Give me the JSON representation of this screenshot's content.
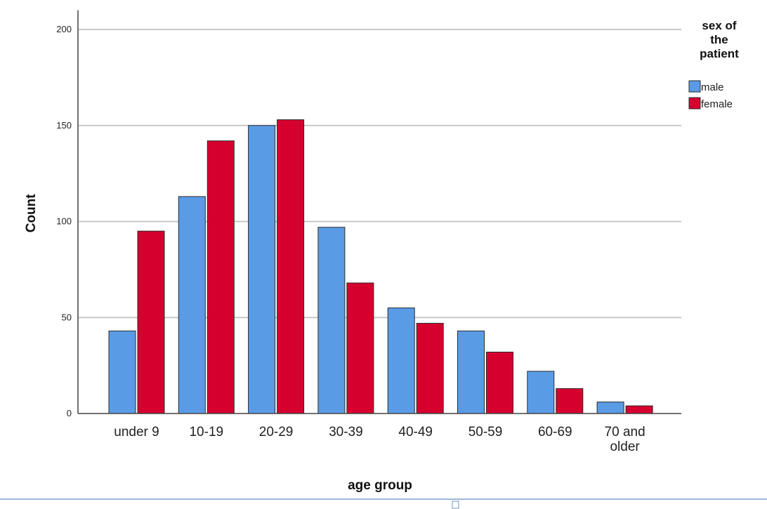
{
  "chart_data": {
    "type": "bar",
    "title": "",
    "xlabel": "age group",
    "ylabel": "Count",
    "ylim": [
      0,
      210
    ],
    "yticks": [
      0,
      50,
      100,
      150,
      200
    ],
    "grid": true,
    "legend_position": "top-right",
    "legend_title": "sex of the patient",
    "categories": [
      "under 9",
      "10-19",
      "20-29",
      "30-39",
      "40-49",
      "50-59",
      "60-69",
      "70 and older"
    ],
    "series": [
      {
        "name": "male",
        "color": "#5a9be6",
        "values": [
          43,
          113,
          150,
          97,
          55,
          43,
          22,
          6
        ]
      },
      {
        "name": "female",
        "color": "#d5002e",
        "values": [
          95,
          142,
          153,
          68,
          47,
          32,
          13,
          4
        ]
      }
    ]
  }
}
